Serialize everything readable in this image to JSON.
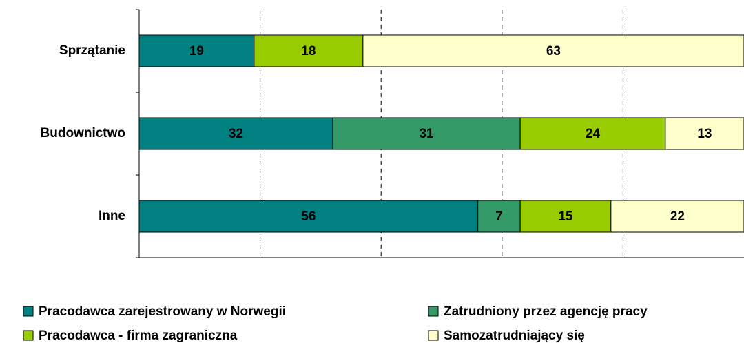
{
  "chart_data": {
    "type": "stacked-bar-horizontal",
    "categories": [
      "Sprzątanie",
      "Budownictwo",
      "Inne"
    ],
    "series": [
      {
        "name": "Pracodawca zarejestrowany w Norwegii",
        "color": "#008080",
        "values": [
          19,
          32,
          56
        ]
      },
      {
        "name": "Zatrudniony przez agencję pracy",
        "color": "#339966",
        "values": [
          null,
          31,
          7
        ]
      },
      {
        "name": "Pracodawca - firma zagraniczna",
        "color": "#99cc00",
        "values": [
          18,
          24,
          15
        ]
      },
      {
        "name": "Samozatrudniający się",
        "color": "#ffffcc",
        "values": [
          63,
          13,
          22
        ]
      }
    ],
    "xlim": [
      0,
      100
    ],
    "xticks": [
      0,
      20,
      40,
      60,
      80,
      100
    ],
    "grid": true,
    "legend": "bottom"
  }
}
